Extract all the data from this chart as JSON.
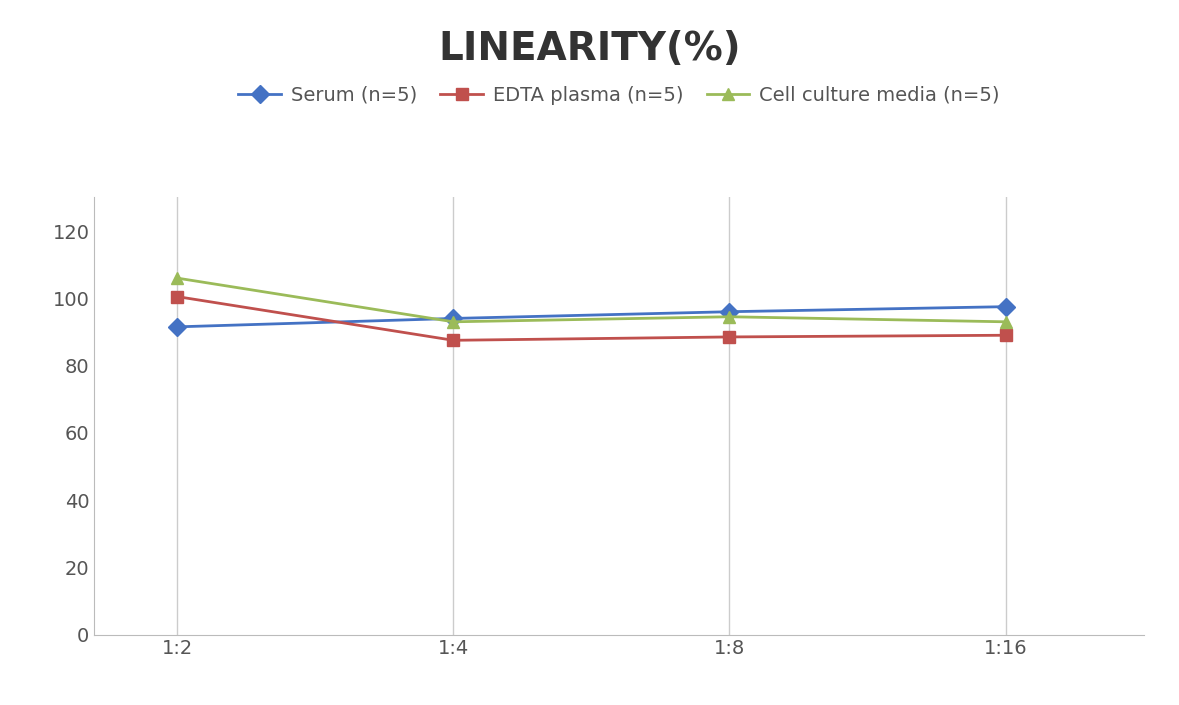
{
  "title": "LINEARITY(%)",
  "title_fontsize": 28,
  "title_fontweight": "bold",
  "x_labels": [
    "1:2",
    "1:4",
    "1:8",
    "1:16"
  ],
  "x_positions": [
    0,
    1,
    2,
    3
  ],
  "serum": [
    91.5,
    94.0,
    96.0,
    97.5
  ],
  "edta": [
    100.5,
    87.5,
    88.5,
    89.0
  ],
  "cell": [
    106.0,
    93.0,
    94.5,
    93.0
  ],
  "serum_color": "#4472C4",
  "edta_color": "#C0504D",
  "cell_color": "#9BBB59",
  "serum_label": "Serum (n=5)",
  "edta_label": "EDTA plasma (n=5)",
  "cell_label": "Cell culture media (n=5)",
  "ylim": [
    0,
    130
  ],
  "yticks": [
    0,
    20,
    40,
    60,
    80,
    100,
    120
  ],
  "background_color": "#FFFFFF",
  "grid_color": "#CCCCCC",
  "marker_size": 9,
  "line_width": 2.0,
  "tick_fontsize": 14,
  "legend_fontsize": 14
}
